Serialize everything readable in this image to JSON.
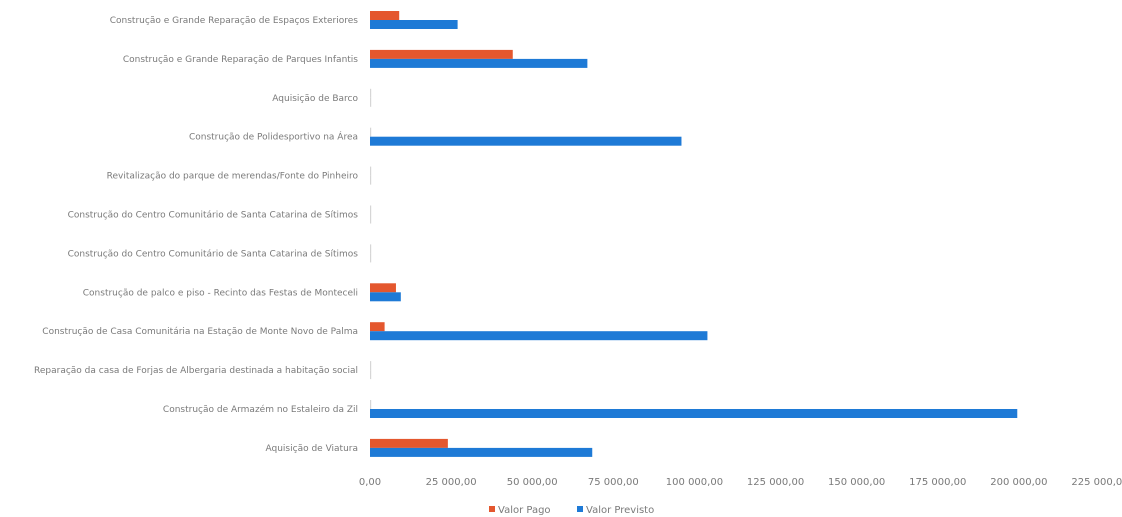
{
  "chart_data": {
    "type": "bar",
    "orientation": "horizontal",
    "categories": [
      "Construção e Grande Reparação de Espaços Exteriores",
      "Construção e Grande Reparação de Parques Infantis",
      "Aquisição de Barco",
      "Construção de Polidesportivo na Área",
      "Revitalização do parque de merendas/Fonte do Pinheiro",
      "Construção do Centro Comunitário de Santa Catarina de Sítimos",
      "Construção do Centro Comunitário de Santa Catarina de Sítimos",
      "Construção de palco e piso - Recinto das Festas de Monteceli",
      "Construção de Casa Comunitária na Estação de Monte Novo de Palma",
      "Reparação da casa de Forjas de Albergaria destinada a habitação social",
      "Construção de Armazém no Estaleiro da Zil",
      "Aquisição de Viatura"
    ],
    "series": [
      {
        "name": "Valor Pago",
        "color": "#e4572e",
        "values": [
          9000,
          44000,
          0,
          0,
          0,
          0,
          0,
          8000,
          4500,
          0,
          0,
          24000
        ]
      },
      {
        "name": "Valor Previsto",
        "color": "#1e7ad6",
        "values": [
          27000,
          67000,
          0,
          96000,
          0,
          0,
          0,
          9500,
          104000,
          0,
          199500,
          68500
        ]
      }
    ],
    "xlim": [
      0,
      225000
    ],
    "xticks": [
      "0,00",
      "25 000,00",
      "50 000,00",
      "75 000,00",
      "100 000,00",
      "125 000,00",
      "150 000,00",
      "175 000,00",
      "200 000,00",
      "225 000,00"
    ],
    "grid": false,
    "legend": "bottom"
  }
}
